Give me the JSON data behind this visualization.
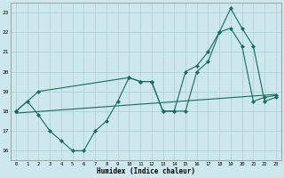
{
  "bg_color": "#cce8ec",
  "grid_color": "#aacdd4",
  "line_color": "#1a6b5a",
  "xlabel": "Humidex (Indice chaleur)",
  "xlim": [
    -0.5,
    23.5
  ],
  "ylim": [
    15.5,
    23.5
  ],
  "yticks": [
    16,
    17,
    18,
    19,
    20,
    21,
    22,
    23
  ],
  "xticks": [
    0,
    1,
    2,
    3,
    4,
    5,
    6,
    7,
    8,
    9,
    10,
    11,
    12,
    13,
    14,
    15,
    16,
    17,
    18,
    19,
    20,
    21,
    22,
    23
  ],
  "curve1_x": [
    0,
    1,
    2,
    3,
    4,
    5,
    6,
    7,
    8,
    9,
    10,
    11,
    12,
    13,
    14,
    15,
    16,
    17,
    18,
    19,
    20,
    21,
    22,
    23
  ],
  "curve1_y": [
    18.0,
    18.5,
    17.8,
    17.0,
    16.5,
    16.0,
    16.0,
    17.0,
    17.5,
    18.5,
    19.7,
    19.5,
    19.5,
    18.0,
    18.0,
    18.0,
    20.0,
    20.5,
    22.0,
    22.2,
    21.3,
    18.5,
    18.7,
    18.8
  ],
  "curve2_x": [
    0,
    2,
    10,
    11,
    12,
    13,
    14,
    15,
    16,
    17,
    18,
    19,
    20,
    21,
    22,
    23
  ],
  "curve2_y": [
    18.0,
    19.0,
    19.7,
    19.5,
    19.5,
    18.0,
    18.0,
    20.0,
    20.3,
    21.0,
    22.0,
    23.2,
    22.2,
    21.3,
    18.5,
    18.7
  ],
  "curve3_x": [
    0,
    23
  ],
  "curve3_y": [
    17.9,
    18.85
  ]
}
